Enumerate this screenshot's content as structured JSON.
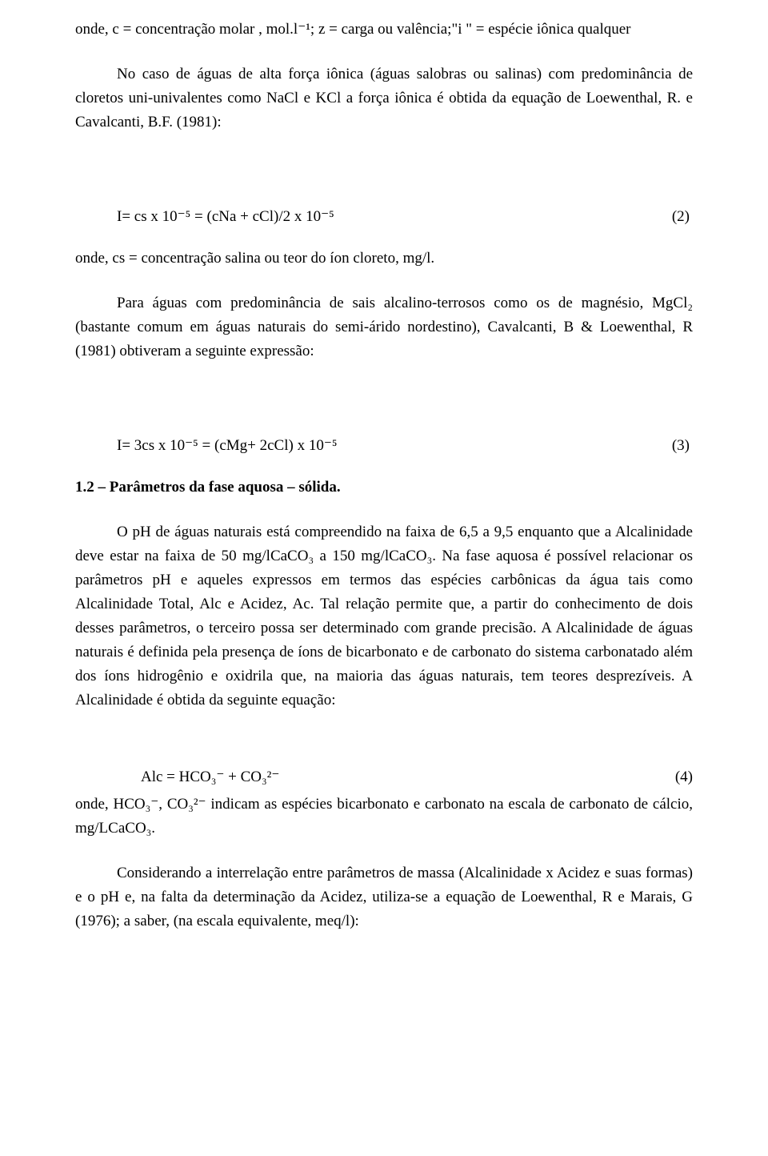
{
  "p1": "onde, c = concentração molar , mol.l⁻¹; z = carga ou valência;\"i \" = espécie iônica qualquer",
  "p2": "No caso de águas de alta força iônica (águas salobras ou salinas) com predominância de cloretos uni-univalentes como NaCl e KCl a força iônica é obtida da equação de Loewenthal, R. e Cavalcanti, B.F. (1981):",
  "eq2": {
    "lhs": "I= cs x 10⁻⁵ = (cNa + cCl)/2 x 10⁻⁵",
    "num": "(2)"
  },
  "p3": "onde, cs = concentração salina ou teor do íon cloreto, mg/l.",
  "p4": "Para águas com predominância de sais alcalino-terrosos como os de magnésio, MgCl₂ (bastante comum em águas naturais do semi-árido nordestino), Cavalcanti, B & Loewenthal, R (1981) obtiveram a seguinte expressão:",
  "eq3": {
    "lhs": "I= 3cs x 10⁻⁵ = (cMg+ 2cCl) x 10⁻⁵",
    "num": "(3)"
  },
  "h1": "1.2 – Parâmetros da fase aquosa – sólida.",
  "p5": "O pH de águas naturais está compreendido na faixa de 6,5 a 9,5 enquanto que a Alcalinidade deve estar na faixa de 50 mg/lCaCO₃ a 150 mg/lCaCO₃. Na fase aquosa é possível relacionar os parâmetros pH e aqueles expressos em termos das espécies carbônicas da água tais como Alcalinidade Total, Alc e Acidez, Ac. Tal relação permite que, a partir do conhecimento de dois desses parâmetros, o terceiro possa ser determinado com grande precisão. A Alcalinidade de águas naturais é definida pela presença de íons de bicarbonato e de carbonato do sistema carbonatado além dos íons hidrogênio e oxidrila que, na maioria das águas naturais, tem teores desprezíveis. A Alcalinidade é obtida da seguinte equação:",
  "eq4": {
    "lhs": "Alc = HCO₃⁻ + CO₃²⁻",
    "num": "(4)"
  },
  "p6": "onde, HCO₃⁻, CO₃²⁻ indicam as espécies bicarbonato e carbonato na escala de carbonato de cálcio, mg/LCaCO₃.",
  "p7": "Considerando a interrelação entre parâmetros de massa (Alcalinidade x Acidez e suas formas) e o pH e, na falta da determinação da Acidez, utiliza-se a equação de Loewenthal, R e Marais, G (1976); a saber, (na escala equivalente, meq/l):"
}
